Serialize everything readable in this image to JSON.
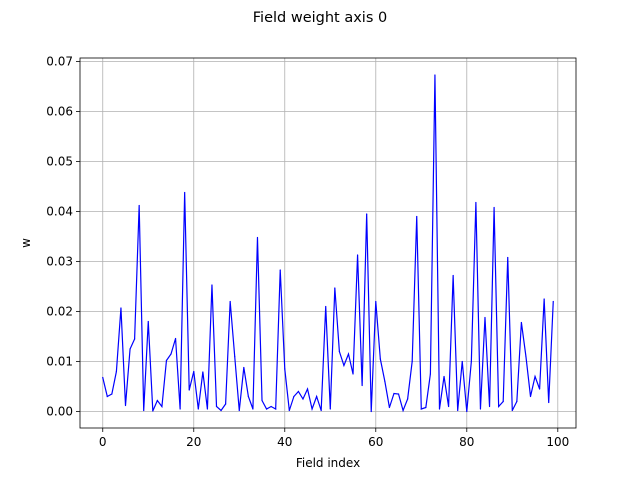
{
  "chart_data": {
    "type": "line",
    "title": "Field weight axis 0",
    "xlabel": "Field index",
    "ylabel": "w",
    "xlim": [
      -5,
      104
    ],
    "ylim": [
      -0.0033,
      0.0707
    ],
    "grid": true,
    "x_ticks": [
      0,
      20,
      40,
      60,
      80,
      100
    ],
    "y_ticks": [
      0.0,
      0.01,
      0.02,
      0.03,
      0.04,
      0.05,
      0.06,
      0.07
    ],
    "x_tick_labels": [
      "0",
      "20",
      "40",
      "60",
      "80",
      "100"
    ],
    "y_tick_labels": [
      "0.00",
      "0.01",
      "0.02",
      "0.03",
      "0.04",
      "0.05",
      "0.06",
      "0.07"
    ],
    "series": [
      {
        "color": "#0000ff",
        "x": [
          0,
          1,
          2,
          3,
          4,
          5,
          6,
          7,
          8,
          9,
          10,
          11,
          12,
          13,
          14,
          15,
          16,
          17,
          18,
          19,
          20,
          21,
          22,
          23,
          24,
          25,
          26,
          27,
          28,
          29,
          30,
          31,
          32,
          33,
          34,
          35,
          36,
          37,
          38,
          39,
          40,
          41,
          42,
          43,
          44,
          45,
          46,
          47,
          48,
          49,
          50,
          51,
          52,
          53,
          54,
          55,
          56,
          57,
          58,
          59,
          60,
          61,
          62,
          63,
          64,
          65,
          66,
          67,
          68,
          69,
          70,
          71,
          72,
          73,
          74,
          75,
          76,
          77,
          78,
          79,
          80,
          81,
          82,
          83,
          84,
          85,
          86,
          87,
          88,
          89,
          90,
          91,
          92,
          93,
          94,
          95,
          96,
          97,
          98,
          99
        ],
        "values": [
          0.0068,
          0.003,
          0.0035,
          0.008,
          0.0207,
          0.0012,
          0.0125,
          0.0145,
          0.0412,
          0.0002,
          0.018,
          0.0001,
          0.0022,
          0.001,
          0.0102,
          0.0115,
          0.0146,
          0.0005,
          0.0438,
          0.0043,
          0.008,
          0.0005,
          0.0079,
          0.0005,
          0.0253,
          0.001,
          0.0002,
          0.0015,
          0.022,
          0.011,
          0.0002,
          0.0088,
          0.003,
          0.0005,
          0.0348,
          0.0022,
          0.0005,
          0.001,
          0.0005,
          0.0283,
          0.0085,
          0.0002,
          0.003,
          0.004,
          0.0025,
          0.0045,
          0.0005,
          0.003,
          0.0002,
          0.021,
          0.0005,
          0.0247,
          0.012,
          0.0092,
          0.0115,
          0.0075,
          0.0313,
          0.0052,
          0.0395,
          0.0,
          0.022,
          0.0105,
          0.006,
          0.0008,
          0.0036,
          0.0035,
          0.0002,
          0.0025,
          0.01,
          0.039,
          0.0005,
          0.0008,
          0.0075,
          0.0673,
          0.0005,
          0.007,
          0.001,
          0.0272,
          0.0002,
          0.01,
          0.0,
          0.01,
          0.0418,
          0.0005,
          0.0188,
          0.001,
          0.0408,
          0.001,
          0.002,
          0.0308,
          0.0002,
          0.002,
          0.0178,
          0.011,
          0.003,
          0.007,
          0.0045,
          0.0225,
          0.0018,
          0.022
        ]
      }
    ]
  }
}
